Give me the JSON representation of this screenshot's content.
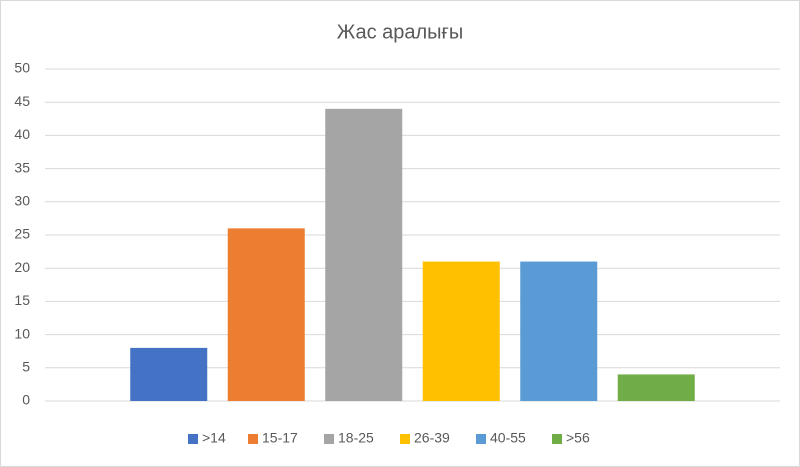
{
  "chart_data": {
    "type": "bar",
    "title": "Жас аралығы",
    "categories": [
      null
    ],
    "series": [
      {
        "name": ">14",
        "color": "#4472c4",
        "values": [
          8
        ]
      },
      {
        "name": "15-17",
        "color": "#ed7d31",
        "values": [
          26
        ]
      },
      {
        "name": "18-25",
        "color": "#a5a5a5",
        "values": [
          44
        ]
      },
      {
        "name": "26-39",
        "color": "#ffc000",
        "values": [
          21
        ]
      },
      {
        "name": "40-55",
        "color": "#5b9bd5",
        "values": [
          21
        ]
      },
      {
        "name": ">56",
        "color": "#70ad47",
        "values": [
          4
        ]
      }
    ],
    "ylim": [
      0,
      50
    ],
    "yticks": [
      0,
      5,
      10,
      15,
      20,
      25,
      30,
      35,
      40,
      45,
      50
    ],
    "grid": true,
    "legend": "bottom"
  }
}
